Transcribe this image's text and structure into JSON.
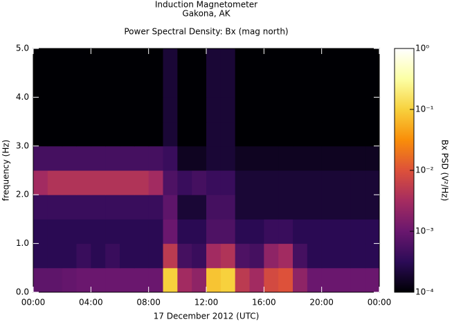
{
  "chart_data": {
    "type": "spectrogram",
    "title_lines": [
      "Induction Magnetometer",
      "Gakona, AK"
    ],
    "subtitle": "Power Spectral Density: Bx (mag north)",
    "x_label": "17 December 2012 (UTC)",
    "y_label": "frequency (Hz)",
    "colorbar_label": "Bx PSD (V²/Hz)",
    "xlim": [
      0,
      24
    ],
    "xticks": [
      {
        "value": 0,
        "label": "00:00"
      },
      {
        "value": 4,
        "label": "04:00"
      },
      {
        "value": 8,
        "label": "08:00"
      },
      {
        "value": 12,
        "label": "12:00"
      },
      {
        "value": 16,
        "label": "16:00"
      },
      {
        "value": 20,
        "label": "20:00"
      },
      {
        "value": 24,
        "label": "00:00"
      }
    ],
    "ylim": [
      0,
      5
    ],
    "yticks": [
      {
        "value": 0,
        "label": "0.0"
      },
      {
        "value": 1,
        "label": "1.0"
      },
      {
        "value": 2,
        "label": "2.0"
      },
      {
        "value": 3,
        "label": "3.0"
      },
      {
        "value": 4,
        "label": "4.0"
      },
      {
        "value": 5,
        "label": "5.0"
      }
    ],
    "zlim": [
      0.0001,
      1
    ],
    "zscale": "log",
    "zticks": [
      {
        "value": 0.0001,
        "label": "10⁻⁴"
      },
      {
        "value": 0.001,
        "label": "10⁻³"
      },
      {
        "value": 0.01,
        "label": "10⁻²"
      },
      {
        "value": 0.1,
        "label": "10⁻¹"
      },
      {
        "value": 1,
        "label": "10⁰"
      }
    ],
    "colormap": [
      "#000004",
      "#2c0b57",
      "#6a176e",
      "#a52c60",
      "#dd513a",
      "#f98e09",
      "#f7d13d",
      "#fcffa4",
      "#ffffff"
    ],
    "xbins": [
      0,
      1,
      2,
      3,
      4,
      5,
      6,
      7,
      8,
      9,
      10,
      11,
      12,
      13,
      14,
      15,
      16,
      17,
      18,
      19,
      20,
      21,
      22,
      23,
      24
    ],
    "ybins": [
      0,
      0.5,
      1,
      1.5,
      2,
      2.5,
      3,
      3.5,
      4,
      4.5,
      5
    ],
    "z": [
      [
        0.0008,
        0.0008,
        0.0009,
        0.001,
        0.001,
        0.001,
        0.001,
        0.001,
        0.001,
        0.1,
        0.003,
        0.002,
        0.08,
        0.1,
        0.005,
        0.003,
        0.008,
        0.01,
        0.002,
        0.001,
        0.001,
        0.001,
        0.001,
        0.001
      ],
      [
        0.0003,
        0.0003,
        0.0003,
        0.0004,
        0.0003,
        0.0004,
        0.0003,
        0.0003,
        0.0003,
        0.005,
        0.0005,
        0.0004,
        0.003,
        0.004,
        0.0006,
        0.0005,
        0.002,
        0.003,
        0.0005,
        0.0003,
        0.0003,
        0.0003,
        0.0003,
        0.0003
      ],
      [
        0.0003,
        0.0003,
        0.0003,
        0.0003,
        0.0003,
        0.0003,
        0.0003,
        0.0003,
        0.0003,
        0.001,
        0.0003,
        0.0003,
        0.0006,
        0.0006,
        0.0003,
        0.0003,
        0.0004,
        0.0004,
        0.0003,
        0.0003,
        0.0003,
        0.0003,
        0.0003,
        0.0003
      ],
      [
        0.0004,
        0.0004,
        0.0004,
        0.0004,
        0.0004,
        0.0004,
        0.0004,
        0.0004,
        0.0004,
        0.0008,
        0.0002,
        0.0002,
        0.0005,
        0.0005,
        0.0002,
        0.0002,
        0.0002,
        0.0002,
        0.0002,
        0.0002,
        0.0002,
        0.0002,
        0.0002,
        0.0002
      ],
      [
        0.003,
        0.004,
        0.004,
        0.004,
        0.004,
        0.004,
        0.004,
        0.004,
        0.003,
        0.0006,
        0.0004,
        0.0005,
        0.0004,
        0.0004,
        0.0002,
        0.0002,
        0.0002,
        0.0002,
        0.0002,
        0.0002,
        0.0002,
        0.0002,
        0.0002,
        0.0002
      ],
      [
        0.0005,
        0.0005,
        0.0005,
        0.0005,
        0.0005,
        0.0005,
        0.0005,
        0.0005,
        0.0005,
        0.0004,
        0.00015,
        0.00015,
        0.0002,
        0.0002,
        0.00015,
        0.00015,
        0.00015,
        0.00015,
        0.00015,
        0.00015,
        0.00015,
        0.00015,
        0.00015,
        0.00015
      ],
      [
        0.0001,
        0.0001,
        0.0001,
        0.0001,
        0.0001,
        0.0001,
        0.0001,
        0.0001,
        0.0001,
        0.0002,
        0.0001,
        0.0001,
        0.0002,
        0.0002,
        0.0001,
        0.0001,
        0.0001,
        0.0001,
        0.0001,
        0.0001,
        0.0001,
        0.0001,
        0.0001,
        0.0001
      ],
      [
        0.0001,
        0.0001,
        0.0001,
        0.0001,
        0.0001,
        0.0001,
        0.0001,
        0.0001,
        0.0001,
        0.0002,
        0.0001,
        0.0001,
        0.0002,
        0.0002,
        0.0001,
        0.0001,
        0.0001,
        0.0001,
        0.0001,
        0.0001,
        0.0001,
        0.0001,
        0.0001,
        0.0001
      ],
      [
        0.0001,
        0.0001,
        0.0001,
        0.0001,
        0.0001,
        0.0001,
        0.0001,
        0.0001,
        0.0001,
        0.0002,
        0.0001,
        0.0001,
        0.0002,
        0.0002,
        0.0001,
        0.0001,
        0.0001,
        0.0001,
        0.0001,
        0.0001,
        0.0001,
        0.0001,
        0.0001,
        0.0001
      ],
      [
        0.0001,
        0.0001,
        0.0001,
        0.0001,
        0.0001,
        0.0001,
        0.0001,
        0.0001,
        0.0001,
        0.0002,
        0.0001,
        0.0001,
        0.0002,
        0.0002,
        0.0001,
        0.0001,
        0.0001,
        0.0001,
        0.0001,
        0.0001,
        0.0001,
        0.0001,
        0.0001,
        0.0001
      ]
    ]
  }
}
